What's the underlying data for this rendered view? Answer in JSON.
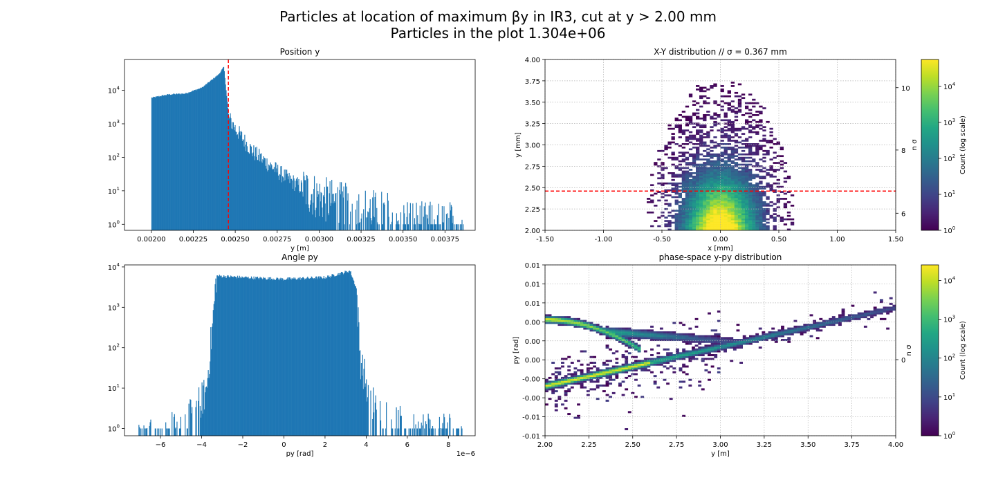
{
  "figure": {
    "title_line1": "Particles at location of maximum βy in IR3, cut at y > 2.00 mm",
    "title_line2": "Particles in the plot 1.304e+06"
  },
  "chart_data": [
    {
      "id": "position-y",
      "type": "bar",
      "title": "Position y",
      "xlabel": "y [m]",
      "ylabel": "",
      "xlim": [
        0.00184,
        0.00393
      ],
      "ylim_log10": [
        -0.18,
        4.92
      ],
      "yscale": "log",
      "xticks": [
        "0.00200",
        "0.00225",
        "0.00250",
        "0.00275",
        "0.00300",
        "0.00325",
        "0.00350",
        "0.00375"
      ],
      "xtick_values": [
        0.002,
        0.00225,
        0.0025,
        0.00275,
        0.003,
        0.00325,
        0.0035,
        0.00375
      ],
      "yticks": [
        "10",
        "10",
        "10",
        "10",
        "10"
      ],
      "ytick_exponents": [
        "0",
        "1",
        "2",
        "3",
        "4"
      ],
      "ytick_values": [
        1,
        10,
        100,
        1000,
        10000
      ],
      "bar_color": "#1f77b4",
      "cut_line_x": 0.002459,
      "cut_line_color": "#ff0000",
      "histogram_profile": [
        {
          "x": 0.002,
          "count": 6000
        },
        {
          "x": 0.0021,
          "count": 7500
        },
        {
          "x": 0.0022,
          "count": 8000
        },
        {
          "x": 0.0023,
          "count": 12000
        },
        {
          "x": 0.0024,
          "count": 30000
        },
        {
          "x": 0.00243,
          "count": 50000
        },
        {
          "x": 0.00246,
          "count": 1500
        },
        {
          "x": 0.0025,
          "count": 700
        },
        {
          "x": 0.0026,
          "count": 150
        },
        {
          "x": 0.0027,
          "count": 60
        },
        {
          "x": 0.0028,
          "count": 25
        },
        {
          "x": 0.0029,
          "count": 12
        },
        {
          "x": 0.003,
          "count": 6
        },
        {
          "x": 0.0032,
          "count": 3
        },
        {
          "x": 0.0034,
          "count": 2
        },
        {
          "x": 0.0036,
          "count": 1
        },
        {
          "x": 0.00386,
          "count": 1
        }
      ]
    },
    {
      "id": "xy-distribution",
      "type": "heatmap",
      "title": "X-Y distribution   //   σ = 0.367 mm",
      "xlabel": "x [mm]",
      "ylabel": "y [mm]",
      "right_ylabel": "n σ",
      "xlim": [
        -1.5,
        1.5
      ],
      "ylim": [
        2.0,
        4.0
      ],
      "xticks": [
        "-1.50",
        "-1.00",
        "-0.50",
        "0.00",
        "0.50",
        "1.00",
        "1.50"
      ],
      "xtick_values": [
        -1.5,
        -1.0,
        -0.5,
        0.0,
        0.5,
        1.0,
        1.5
      ],
      "yticks": [
        "2.00",
        "2.25",
        "2.50",
        "2.75",
        "3.00",
        "3.25",
        "3.50",
        "3.75",
        "4.00"
      ],
      "ytick_values": [
        2.0,
        2.25,
        2.5,
        2.75,
        3.0,
        3.25,
        3.5,
        3.75,
        4.0
      ],
      "right_yticks": [
        "6",
        "8",
        "10"
      ],
      "right_ytick_values": [
        2.2,
        2.94,
        3.67
      ],
      "cut_line_y": 2.46,
      "grid": true,
      "colorbar": {
        "label": "Count (log scale)",
        "ticks": [
          "10",
          "10",
          "10",
          "10",
          "10"
        ],
        "exponents": [
          "0",
          "1",
          "2",
          "3",
          "4"
        ],
        "max_log10": 4.75
      }
    },
    {
      "id": "angle-py",
      "type": "bar",
      "title": "Angle py",
      "xlabel": "py [rad]",
      "ylabel": "",
      "offset_label": "1e−6",
      "xlim": [
        -7.75,
        9.3
      ],
      "ylim_log10": [
        -0.18,
        4.05
      ],
      "yscale": "log",
      "xticks": [
        "−6",
        "−4",
        "−2",
        "0",
        "2",
        "4",
        "6",
        "8"
      ],
      "xtick_values": [
        -6,
        -4,
        -2,
        0,
        2,
        4,
        6,
        8
      ],
      "yticks": [
        "10",
        "10",
        "10",
        "10",
        "10"
      ],
      "ytick_exponents": [
        "0",
        "1",
        "2",
        "3",
        "4"
      ],
      "ytick_values": [
        1,
        10,
        100,
        1000,
        10000
      ],
      "bar_color": "#1f77b4",
      "histogram_profile": [
        {
          "x": -7.1,
          "count": 1
        },
        {
          "x": -5.5,
          "count": 1
        },
        {
          "x": -4.5,
          "count": 2
        },
        {
          "x": -3.8,
          "count": 8
        },
        {
          "x": -3.5,
          "count": 300
        },
        {
          "x": -3.3,
          "count": 6000
        },
        {
          "x": -2.0,
          "count": 5500
        },
        {
          "x": 0.0,
          "count": 5000
        },
        {
          "x": 2.0,
          "count": 5500
        },
        {
          "x": 3.2,
          "count": 8000
        },
        {
          "x": 3.5,
          "count": 3000
        },
        {
          "x": 3.7,
          "count": 50
        },
        {
          "x": 4.2,
          "count": 5
        },
        {
          "x": 5.0,
          "count": 2
        },
        {
          "x": 6.0,
          "count": 1
        },
        {
          "x": 8.7,
          "count": 1
        }
      ]
    },
    {
      "id": "phase-space",
      "type": "heatmap",
      "title": "phase-space y-py distribution",
      "xlabel": "y [m]",
      "ylabel": "py [rad]",
      "right_ylabel": "n σ",
      "xlim": [
        2.0,
        4.0
      ],
      "xticks": [
        "2.00",
        "2.25",
        "2.50",
        "2.75",
        "3.00",
        "3.25",
        "3.50",
        "3.75",
        "4.00"
      ],
      "xtick_values": [
        2.0,
        2.25,
        2.5,
        2.75,
        3.0,
        3.25,
        3.5,
        3.75,
        4.0
      ],
      "yticks": [
        "-0.01",
        "-0.01",
        "-0.00",
        "-0.00",
        "0.00",
        "0.00",
        "0.00",
        "0.01",
        "0.01",
        "0.01"
      ],
      "right_yticks": [
        "0"
      ],
      "grid": true,
      "colorbar": {
        "label": "Count (log scale)",
        "ticks": [
          "10",
          "10",
          "10",
          "10",
          "10"
        ],
        "exponents": [
          "0",
          "1",
          "2",
          "3",
          "4"
        ],
        "max_log10": 4.4
      }
    }
  ]
}
